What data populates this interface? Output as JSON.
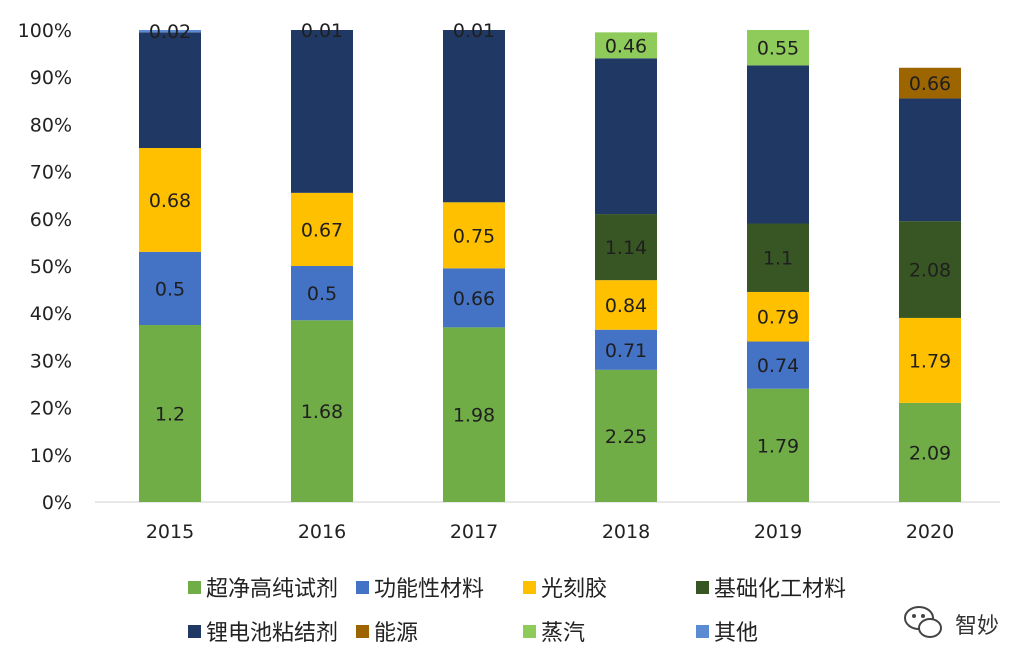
{
  "chart_data": {
    "type": "bar",
    "stacked": "percent",
    "categories": [
      "2015",
      "2016",
      "2017",
      "2018",
      "2019",
      "2020"
    ],
    "ylim": [
      0,
      100
    ],
    "yticks": [
      "0%",
      "10%",
      "20%",
      "30%",
      "40%",
      "50%",
      "60%",
      "70%",
      "80%",
      "90%",
      "100%"
    ],
    "grid": false,
    "legend_position": "bottom",
    "series": [
      {
        "name": "超净高纯试剂",
        "color": "#70AD47",
        "shares": [
          37.5,
          38.5,
          37.0,
          28.0,
          24.0,
          21.0
        ],
        "labels": [
          "1.2",
          "1.68",
          "1.98",
          "2.25",
          "1.79",
          "2.09"
        ]
      },
      {
        "name": "功能性材料",
        "color": "#4472C4",
        "shares": [
          15.5,
          11.5,
          12.5,
          8.5,
          10.0,
          0
        ],
        "labels": [
          "0.5",
          "0.5",
          "0.66",
          "0.71",
          "0.74",
          ""
        ]
      },
      {
        "name": "光刻胶",
        "color": "#FFC000",
        "shares": [
          22.0,
          15.5,
          14.0,
          10.5,
          10.5,
          18.0
        ],
        "labels": [
          "0.68",
          "0.67",
          "0.75",
          "0.84",
          "0.79",
          "1.79"
        ]
      },
      {
        "name": "基础化工材料",
        "color": "#375623",
        "shares": [
          0,
          0,
          0,
          14.0,
          14.5,
          20.5
        ],
        "labels": [
          "",
          "",
          "",
          "1.14",
          "1.1",
          "2.08"
        ]
      },
      {
        "name": "锂电池粘结剂",
        "color": "#203864",
        "shares": [
          24.5,
          34.5,
          36.5,
          33.0,
          33.5,
          26.0
        ],
        "labels": [
          "",
          "",
          "",
          "",
          "",
          ""
        ]
      },
      {
        "name": "能源",
        "color": "#9C6500",
        "shares": [
          0,
          0,
          0,
          0,
          0,
          6.5
        ],
        "labels": [
          "",
          "",
          "",
          "",
          "",
          "0.66"
        ]
      },
      {
        "name": "蒸汽",
        "color": "#8FCB5A",
        "shares": [
          0,
          0,
          0,
          5.5,
          7.5,
          0
        ],
        "labels": [
          "",
          "",
          "",
          "0.46",
          "0.55",
          ""
        ]
      },
      {
        "name": "其他",
        "color": "#5B8BD3",
        "shares": [
          0.5,
          0,
          0,
          0,
          0,
          0
        ],
        "labels": [
          "0.02",
          "0.01",
          "0.01",
          "",
          "",
          ""
        ]
      }
    ],
    "legend_rows": [
      [
        "超净高纯试剂",
        "功能性材料",
        "光刻胶",
        "基础化工材料"
      ],
      [
        "锂电池粘结剂",
        "能源",
        "蒸汽",
        "其他"
      ]
    ]
  },
  "watermark": {
    "text": "智妙",
    "icon": "wechat-icon"
  }
}
